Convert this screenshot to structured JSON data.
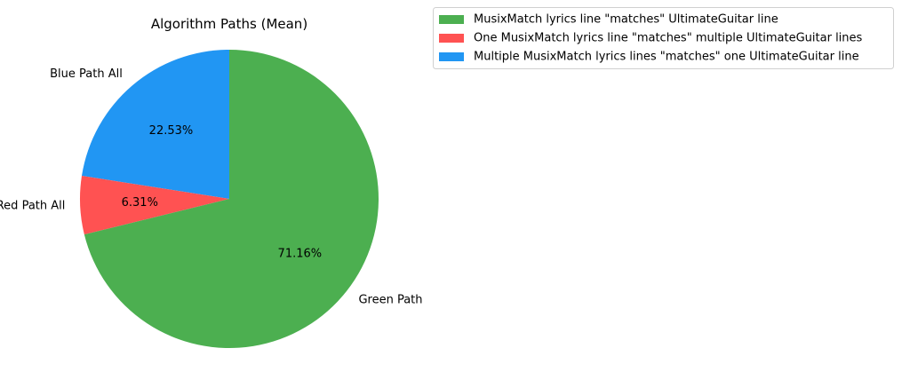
{
  "chart_data": {
    "type": "pie",
    "title": "Algorithm Paths (Mean)",
    "start_angle_deg": 90,
    "direction": "counterclockwise",
    "slices": [
      {
        "label": "Blue Path All",
        "value": 22.53,
        "pct_label": "22.53%",
        "color": "#2196f3"
      },
      {
        "label": "Red Path All",
        "value": 6.31,
        "pct_label": "6.31%",
        "color": "#ff5252"
      },
      {
        "label": "Green Path",
        "value": 71.16,
        "pct_label": "71.16%",
        "color": "#4caf50"
      }
    ],
    "legend": {
      "placement": "top-right",
      "entries": [
        {
          "label": "MusixMatch lyrics line \"matches\" UltimateGuitar line",
          "color": "#4caf50"
        },
        {
          "label": "One MusixMatch lyrics line \"matches\" multiple UltimateGuitar lines",
          "color": "#ff5252"
        },
        {
          "label": "Multiple MusixMatch lyrics lines \"matches\" one UltimateGuitar line",
          "color": "#2196f3"
        }
      ]
    }
  }
}
